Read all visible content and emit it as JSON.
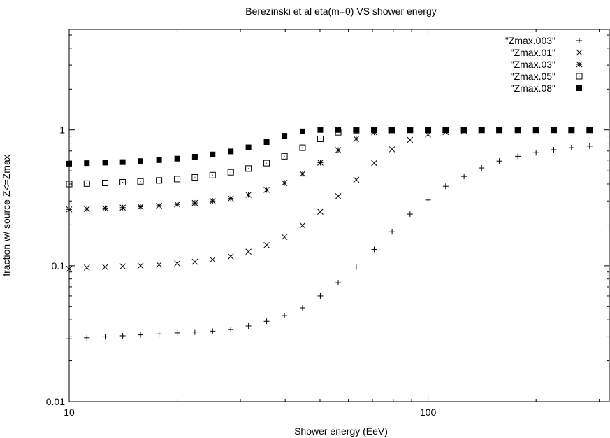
{
  "chart_data": {
    "type": "scatter",
    "title": "Berezinski et al eta(m=0) VS shower energy",
    "xlabel": "Shower energy (EeV)",
    "ylabel": "fraction w/ source Z<=Zmax",
    "xscale": "log",
    "yscale": "log",
    "xlim": [
      10,
      320
    ],
    "ylim": [
      0.01,
      5.5
    ],
    "xticks": [
      10,
      100
    ],
    "xtick_labels": [
      "10",
      "100"
    ],
    "yticks": [
      0.01,
      0.1,
      1
    ],
    "ytick_labels": [
      "0.01",
      "0.1",
      "1"
    ],
    "grid": false,
    "legend_position": "top-right",
    "x": [
      10,
      11.2,
      12.6,
      14.1,
      15.8,
      17.8,
      20,
      22.4,
      25.1,
      28.2,
      31.6,
      35.5,
      39.8,
      44.7,
      50.1,
      56.2,
      63.1,
      70.8,
      79.4,
      89.1,
      100,
      112,
      126,
      141,
      158,
      178,
      200,
      224,
      251,
      282
    ],
    "series": [
      {
        "name": "\"Zmax.003\"",
        "marker": "plus",
        "values": [
          0.029,
          0.0295,
          0.03,
          0.0305,
          0.031,
          0.0315,
          0.032,
          0.0325,
          0.033,
          0.034,
          0.036,
          0.039,
          0.043,
          0.049,
          0.06,
          0.075,
          0.098,
          0.132,
          0.178,
          0.24,
          0.305,
          0.385,
          0.455,
          0.525,
          0.59,
          0.64,
          0.68,
          0.715,
          0.74,
          0.76
        ]
      },
      {
        "name": "\"Zmax.01\"",
        "marker": "cross",
        "values": [
          0.095,
          0.097,
          0.098,
          0.099,
          0.1,
          0.102,
          0.104,
          0.107,
          0.111,
          0.117,
          0.127,
          0.142,
          0.163,
          0.198,
          0.25,
          0.325,
          0.43,
          0.57,
          0.72,
          0.845,
          0.925,
          0.965,
          0.985,
          0.99,
          0.995,
          0.998,
          0.999,
          0.999,
          1.0,
          1.0
        ]
      },
      {
        "name": "\"Zmax.03\"",
        "marker": "star",
        "values": [
          0.26,
          0.262,
          0.265,
          0.268,
          0.272,
          0.277,
          0.283,
          0.29,
          0.3,
          0.313,
          0.333,
          0.362,
          0.407,
          0.475,
          0.575,
          0.71,
          0.86,
          0.96,
          0.99,
          0.998,
          1.0,
          1.0,
          1.0,
          1.0,
          1.0,
          1.0,
          1.0,
          1.0,
          1.0,
          1.0
        ]
      },
      {
        "name": "\"Zmax.05\"",
        "marker": "dotted-square",
        "values": [
          0.4,
          0.403,
          0.407,
          0.412,
          0.418,
          0.425,
          0.435,
          0.448,
          0.465,
          0.488,
          0.52,
          0.57,
          0.64,
          0.74,
          0.86,
          0.96,
          0.995,
          1.0,
          1.0,
          1.0,
          1.0,
          1.0,
          1.0,
          1.0,
          1.0,
          1.0,
          1.0,
          1.0,
          1.0,
          1.0
        ]
      },
      {
        "name": "\"Zmax.08\"",
        "marker": "filled-square",
        "values": [
          0.565,
          0.57,
          0.575,
          0.58,
          0.59,
          0.6,
          0.615,
          0.635,
          0.66,
          0.695,
          0.745,
          0.815,
          0.905,
          0.975,
          1.0,
          1.0,
          1.0,
          1.0,
          1.0,
          1.0,
          1.0,
          1.0,
          1.0,
          1.0,
          1.0,
          1.0,
          1.0,
          1.0,
          1.0,
          1.0
        ]
      }
    ]
  }
}
